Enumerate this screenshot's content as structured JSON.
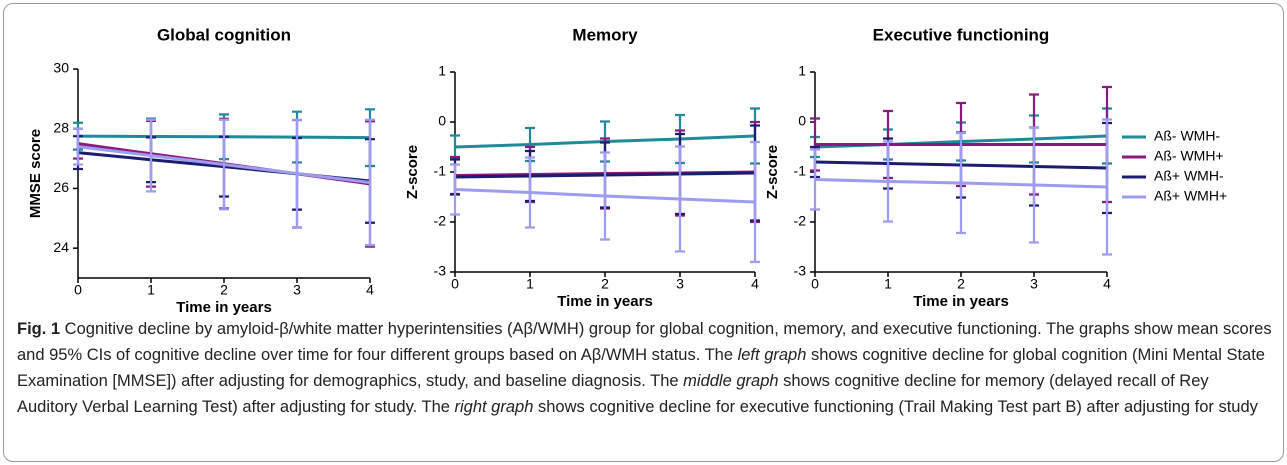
{
  "chart_data": [
    {
      "type": "line",
      "title": "Global cognition",
      "x_label": "Time in years",
      "y_label": "MMSE score",
      "x": [
        0,
        1,
        2,
        3,
        4
      ],
      "xlim": [
        0,
        4
      ],
      "xticks": [
        0,
        1,
        2,
        3,
        4
      ],
      "ylim": [
        23,
        30
      ],
      "yticks": [
        24,
        26,
        28,
        30
      ],
      "series": [
        {
          "color": "#1f8a98",
          "values": [
            27.75,
            27.74,
            27.73,
            27.72,
            27.7
          ],
          "errors": [
            0.45,
            0.6,
            0.75,
            0.85,
            0.95
          ]
        },
        {
          "color": "#8b1a7e",
          "values": [
            27.5,
            27.16,
            26.83,
            26.49,
            26.15
          ],
          "errors": [
            0.5,
            1.1,
            1.5,
            1.8,
            2.1
          ]
        },
        {
          "color": "#1c1c70",
          "values": [
            27.2,
            26.96,
            26.73,
            26.49,
            26.25
          ],
          "errors": [
            0.55,
            0.75,
            1.0,
            1.2,
            1.4
          ]
        },
        {
          "color": "#9d9cf0",
          "values": [
            27.4,
            27.1,
            26.8,
            26.5,
            26.2
          ],
          "errors": [
            0.6,
            1.2,
            1.5,
            1.8,
            2.1
          ]
        }
      ]
    },
    {
      "type": "line",
      "title": "Memory",
      "x_label": "Time in years",
      "y_label": "Z-score",
      "x": [
        0,
        1,
        2,
        3,
        4
      ],
      "xlim": [
        0,
        4
      ],
      "xticks": [
        0,
        1,
        2,
        3,
        4
      ],
      "ylim": [
        -3,
        1
      ],
      "yticks": [
        -3,
        -2,
        -1,
        0,
        1
      ],
      "series": [
        {
          "color": "#1f8a98",
          "values": [
            -0.5,
            -0.45,
            -0.39,
            -0.34,
            -0.28
          ],
          "errors": [
            0.23,
            0.33,
            0.4,
            0.48,
            0.55
          ]
        },
        {
          "color": "#8b1a7e",
          "values": [
            -1.07,
            -1.05,
            -1.03,
            -1.02,
            -1.0
          ],
          "errors": [
            0.37,
            0.55,
            0.7,
            0.85,
            1.0
          ]
        },
        {
          "color": "#1c1c70",
          "values": [
            -1.1,
            -1.08,
            -1.06,
            -1.04,
            -1.02
          ],
          "errors": [
            0.35,
            0.5,
            0.65,
            0.8,
            0.95
          ]
        },
        {
          "color": "#9d9cf0",
          "values": [
            -1.35,
            -1.41,
            -1.48,
            -1.54,
            -1.6
          ],
          "errors": [
            0.5,
            0.7,
            0.87,
            1.05,
            1.2
          ]
        }
      ]
    },
    {
      "type": "line",
      "title": "Executive functioning",
      "x_label": "Time in years",
      "y_label": "Z-score",
      "x": [
        0,
        1,
        2,
        3,
        4
      ],
      "xlim": [
        0,
        4
      ],
      "xticks": [
        0,
        1,
        2,
        3,
        4
      ],
      "ylim": [
        -3,
        1
      ],
      "yticks": [
        -3,
        -2,
        -1,
        0,
        1
      ],
      "legend": "right",
      "series": [
        {
          "name": "Aß- WMH-",
          "color": "#1f8a98",
          "values": [
            -0.5,
            -0.45,
            -0.39,
            -0.34,
            -0.28
          ],
          "errors": [
            0.2,
            0.3,
            0.38,
            0.47,
            0.55
          ]
        },
        {
          "name": "Aß- WMH+",
          "color": "#8b1a7e",
          "values": [
            -0.45,
            -0.45,
            -0.45,
            -0.45,
            -0.45
          ],
          "errors": [
            0.52,
            0.67,
            0.83,
            1.0,
            1.15
          ]
        },
        {
          "name": "Aß+ WMH-",
          "color": "#1c1c70",
          "values": [
            -0.8,
            -0.83,
            -0.86,
            -0.89,
            -0.92
          ],
          "errors": [
            0.3,
            0.5,
            0.65,
            0.78,
            0.9
          ]
        },
        {
          "name": "Aß+ WMH+",
          "color": "#9d9cf0",
          "values": [
            -1.15,
            -1.19,
            -1.22,
            -1.26,
            -1.3
          ],
          "errors": [
            0.6,
            0.8,
            1.0,
            1.15,
            1.35
          ]
        }
      ]
    }
  ],
  "caption": {
    "label": "Fig. 1",
    "text": [
      " Cognitive decline by amyloid-β/white matter hyperintensities (Aβ/WMH) group for global cognition, memory, and executive functioning. The graphs show mean scores and 95% CIs of cognitive decline over time for four different groups based on Aβ/WMH status. The ",
      "left graph",
      " shows cognitive decline for global cognition (Mini Mental State Examination [MMSE]) after adjusting for demographics, study, and baseline diagnosis. The ",
      "middle graph",
      " shows cognitive decline for memory (delayed recall of Rey Auditory Verbal Learning Test) after adjusting for study. The ",
      "right graph",
      " shows cognitive decline for executive functioning (Trail Making Test part B) after adjusting for study"
    ]
  }
}
